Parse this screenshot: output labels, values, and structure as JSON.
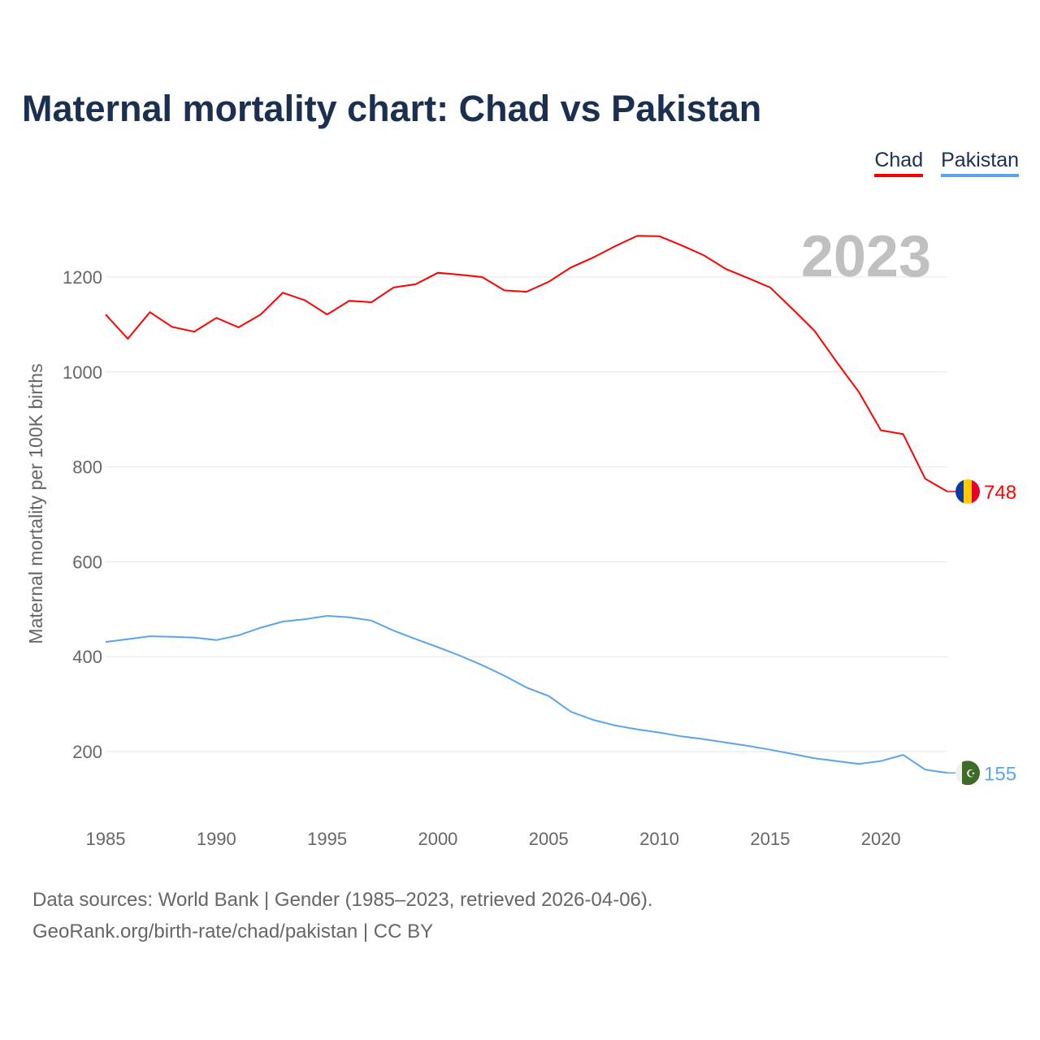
{
  "chart_data": {
    "type": "line",
    "title": "Maternal mortality chart: Chad vs Pakistan",
    "ylabel": "Maternal mortality per 100K births",
    "xlabel": "",
    "ylim": [
      0,
      1300
    ],
    "xlim": [
      1985,
      2023
    ],
    "yticks": [
      200,
      400,
      600,
      800,
      1000,
      1200
    ],
    "xticks": [
      1985,
      1990,
      1995,
      2000,
      2005,
      2010,
      2015,
      2020
    ],
    "grid": true,
    "legend_position": "top-right",
    "year_label": "2023",
    "x": [
      1985,
      1986,
      1987,
      1988,
      1989,
      1990,
      1991,
      1992,
      1993,
      1994,
      1995,
      1996,
      1997,
      1998,
      1999,
      2000,
      2001,
      2002,
      2003,
      2004,
      2005,
      2006,
      2007,
      2008,
      2009,
      2010,
      2011,
      2012,
      2013,
      2014,
      2015,
      2016,
      2017,
      2018,
      2019,
      2020,
      2021,
      2022,
      2023
    ],
    "series": [
      {
        "name": "Chad",
        "color": "#ff0000",
        "end_label": "748",
        "values": [
          1121,
          1070,
          1126,
          1095,
          1085,
          1114,
          1094,
          1121,
          1167,
          1151,
          1121,
          1150,
          1147,
          1178,
          1185,
          1209,
          1205,
          1200,
          1172,
          1169,
          1190,
          1220,
          1241,
          1265,
          1287,
          1286,
          1267,
          1246,
          1217,
          1198,
          1178,
          1133,
          1087,
          1021,
          958,
          877,
          869,
          775,
          748
        ]
      },
      {
        "name": "Pakistan",
        "color": "#5ba4ea",
        "end_label": "155",
        "values": [
          431,
          437,
          443,
          442,
          440,
          435,
          445,
          461,
          474,
          479,
          486,
          483,
          476,
          455,
          437,
          420,
          402,
          382,
          360,
          335,
          317,
          284,
          267,
          255,
          247,
          240,
          232,
          226,
          219,
          212,
          204,
          195,
          186,
          180,
          174,
          180,
          193,
          162,
          155
        ]
      }
    ]
  },
  "source": {
    "line1": "Data sources: World Bank | Gender (1985–2023, retrieved 2026-04-06).",
    "line2": "GeoRank.org/birth-rate/chad/pakistan | CC BY"
  }
}
